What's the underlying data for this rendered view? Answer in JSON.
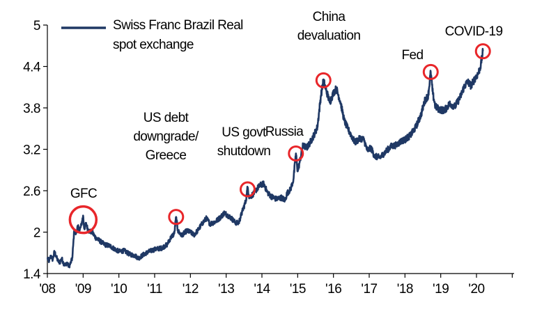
{
  "chart_data": {
    "type": "line",
    "title": "",
    "xlabel": "",
    "ylabel": "",
    "xlim": [
      2008.0,
      2021.0
    ],
    "ylim": [
      1.4,
      5.0
    ],
    "y_ticks": [
      "1.4",
      "2",
      "2.6",
      "3.2",
      "3.8",
      "4.4",
      "5"
    ],
    "x_ticks": [
      "'08",
      "'09",
      "'10",
      "'11",
      "'12",
      "'13",
      "'14",
      "'15",
      "'16",
      "'17",
      "'18",
      "'19",
      "'20"
    ],
    "grid": false,
    "legend_position": "top-left",
    "series": [
      {
        "name": "Swiss Franc Brazil Real spot exchange",
        "name_lines": [
          "Swiss Franc Brazil Real",
          "spot exchange"
        ],
        "color": "#1f3864",
        "points": [
          [
            2008.0,
            1.62
          ],
          [
            2008.05,
            1.58
          ],
          [
            2008.1,
            1.66
          ],
          [
            2008.15,
            1.6
          ],
          [
            2008.2,
            1.72
          ],
          [
            2008.25,
            1.64
          ],
          [
            2008.3,
            1.58
          ],
          [
            2008.35,
            1.56
          ],
          [
            2008.4,
            1.62
          ],
          [
            2008.45,
            1.55
          ],
          [
            2008.5,
            1.52
          ],
          [
            2008.55,
            1.56
          ],
          [
            2008.6,
            1.5
          ],
          [
            2008.65,
            1.55
          ],
          [
            2008.7,
            1.63
          ],
          [
            2008.72,
            1.8
          ],
          [
            2008.75,
            2.02
          ],
          [
            2008.8,
            1.98
          ],
          [
            2008.85,
            2.08
          ],
          [
            2008.9,
            2.02
          ],
          [
            2008.95,
            2.1
          ],
          [
            2009.0,
            2.24
          ],
          [
            2009.03,
            2.05
          ],
          [
            2009.08,
            2.12
          ],
          [
            2009.15,
            2.02
          ],
          [
            2009.25,
            2.0
          ],
          [
            2009.35,
            1.92
          ],
          [
            2009.5,
            1.86
          ],
          [
            2009.6,
            1.82
          ],
          [
            2009.75,
            1.8
          ],
          [
            2009.9,
            1.75
          ],
          [
            2010.0,
            1.72
          ],
          [
            2010.15,
            1.73
          ],
          [
            2010.3,
            1.68
          ],
          [
            2010.45,
            1.66
          ],
          [
            2010.55,
            1.62
          ],
          [
            2010.7,
            1.68
          ],
          [
            2010.85,
            1.72
          ],
          [
            2011.0,
            1.75
          ],
          [
            2011.2,
            1.77
          ],
          [
            2011.35,
            1.82
          ],
          [
            2011.45,
            1.92
          ],
          [
            2011.55,
            1.98
          ],
          [
            2011.6,
            2.22
          ],
          [
            2011.65,
            2.02
          ],
          [
            2011.75,
            1.95
          ],
          [
            2011.9,
            2.02
          ],
          [
            2012.0,
            2.0
          ],
          [
            2012.1,
            1.96
          ],
          [
            2012.2,
            2.02
          ],
          [
            2012.35,
            2.14
          ],
          [
            2012.45,
            2.2
          ],
          [
            2012.55,
            2.12
          ],
          [
            2012.7,
            2.15
          ],
          [
            2012.85,
            2.22
          ],
          [
            2012.95,
            2.28
          ],
          [
            2013.05,
            2.24
          ],
          [
            2013.15,
            2.2
          ],
          [
            2013.25,
            2.14
          ],
          [
            2013.35,
            2.13
          ],
          [
            2013.45,
            2.3
          ],
          [
            2013.55,
            2.45
          ],
          [
            2013.6,
            2.65
          ],
          [
            2013.65,
            2.5
          ],
          [
            2013.75,
            2.55
          ],
          [
            2013.85,
            2.62
          ],
          [
            2013.95,
            2.68
          ],
          [
            2014.05,
            2.7
          ],
          [
            2014.15,
            2.58
          ],
          [
            2014.25,
            2.52
          ],
          [
            2014.4,
            2.48
          ],
          [
            2014.55,
            2.5
          ],
          [
            2014.65,
            2.46
          ],
          [
            2014.7,
            2.56
          ],
          [
            2014.8,
            2.62
          ],
          [
            2014.88,
            2.76
          ],
          [
            2014.95,
            3.14
          ],
          [
            2015.0,
            2.88
          ],
          [
            2015.05,
            3.0
          ],
          [
            2015.15,
            3.26
          ],
          [
            2015.25,
            3.22
          ],
          [
            2015.35,
            3.3
          ],
          [
            2015.45,
            3.4
          ],
          [
            2015.55,
            3.52
          ],
          [
            2015.65,
            3.98
          ],
          [
            2015.72,
            4.2
          ],
          [
            2015.8,
            4.05
          ],
          [
            2015.9,
            3.88
          ],
          [
            2016.0,
            4.02
          ],
          [
            2016.08,
            4.08
          ],
          [
            2016.2,
            3.88
          ],
          [
            2016.3,
            3.62
          ],
          [
            2016.4,
            3.5
          ],
          [
            2016.5,
            3.4
          ],
          [
            2016.6,
            3.3
          ],
          [
            2016.75,
            3.36
          ],
          [
            2016.85,
            3.34
          ],
          [
            2016.95,
            3.18
          ],
          [
            2017.05,
            3.22
          ],
          [
            2017.15,
            3.1
          ],
          [
            2017.3,
            3.08
          ],
          [
            2017.45,
            3.16
          ],
          [
            2017.6,
            3.24
          ],
          [
            2017.75,
            3.26
          ],
          [
            2017.9,
            3.32
          ],
          [
            2018.0,
            3.34
          ],
          [
            2018.15,
            3.4
          ],
          [
            2018.3,
            3.52
          ],
          [
            2018.45,
            3.7
          ],
          [
            2018.55,
            3.9
          ],
          [
            2018.65,
            3.98
          ],
          [
            2018.72,
            4.32
          ],
          [
            2018.78,
            4.0
          ],
          [
            2018.85,
            3.82
          ],
          [
            2018.95,
            3.78
          ],
          [
            2019.1,
            3.76
          ],
          [
            2019.25,
            3.86
          ],
          [
            2019.4,
            3.82
          ],
          [
            2019.55,
            3.96
          ],
          [
            2019.65,
            4.1
          ],
          [
            2019.75,
            4.18
          ],
          [
            2019.85,
            4.12
          ],
          [
            2019.95,
            4.22
          ],
          [
            2020.05,
            4.3
          ],
          [
            2020.12,
            4.42
          ],
          [
            2020.18,
            4.62
          ]
        ]
      }
    ],
    "annotations": [
      {
        "lines": [
          "GFC"
        ],
        "x": 2009.0,
        "y": 2.18,
        "big": true
      },
      {
        "lines": [
          "US debt",
          "downgrade/",
          "Greece"
        ],
        "x": 2011.6,
        "y": 2.22,
        "big": false
      },
      {
        "lines": [
          "US govt",
          "shutdown"
        ],
        "x": 2013.6,
        "y": 2.62,
        "big": false
      },
      {
        "lines": [
          "Russia"
        ],
        "x": 2014.95,
        "y": 3.14,
        "big": false
      },
      {
        "lines": [
          "China",
          "devaluation"
        ],
        "x": 2015.72,
        "y": 4.2,
        "big": false
      },
      {
        "lines": [
          "Fed"
        ],
        "x": 2018.72,
        "y": 4.32,
        "big": false
      },
      {
        "lines": [
          "COVID-19"
        ],
        "x": 2020.18,
        "y": 4.62,
        "big": false
      }
    ],
    "highlight_color": "#e8262a"
  }
}
